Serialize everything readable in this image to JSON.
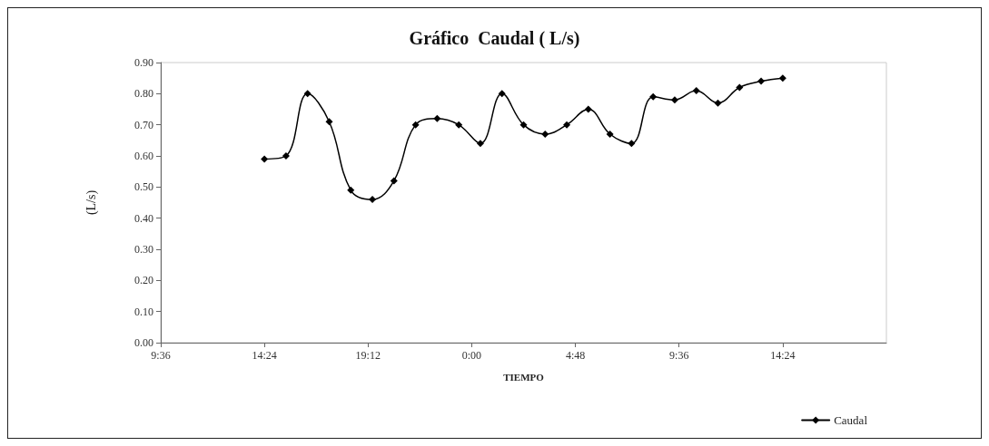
{
  "chart_data": {
    "type": "line",
    "title": "Gráfico  Caudal ( L/s)",
    "xlabel": "TIEMPO",
    "ylabel": "(L/s)",
    "series": [
      {
        "name": "Caudal",
        "color": "#000000",
        "x": [
          "2000-01-01T14:24",
          "2000-01-01T15:24",
          "2000-01-01T16:24",
          "2000-01-01T17:24",
          "2000-01-01T18:24",
          "2000-01-01T19:24",
          "2000-01-01T20:24",
          "2000-01-01T21:24",
          "2000-01-01T22:24",
          "2000-01-01T23:24",
          "2000-01-02T00:24",
          "2000-01-02T01:24",
          "2000-01-02T02:24",
          "2000-01-02T03:24",
          "2000-01-02T04:24",
          "2000-01-02T05:24",
          "2000-01-02T06:24",
          "2000-01-02T07:24",
          "2000-01-02T08:24",
          "2000-01-02T09:24",
          "2000-01-02T10:24",
          "2000-01-02T11:24",
          "2000-01-02T12:24",
          "2000-01-02T13:24",
          "2000-01-02T14:24"
        ],
        "values": [
          0.59,
          0.6,
          0.8,
          0.71,
          0.49,
          0.46,
          0.52,
          0.7,
          0.72,
          0.7,
          0.64,
          0.8,
          0.7,
          0.67,
          0.7,
          0.75,
          0.67,
          0.64,
          0.79,
          0.78,
          0.81,
          0.77,
          0.82,
          0.84,
          0.85
        ]
      }
    ],
    "xlim": [
      "2000-01-01T09:36",
      "2000-01-02T19:12"
    ],
    "xticks": [
      {
        "value": "2000-01-01T09:36",
        "label": "9:36"
      },
      {
        "value": "2000-01-01T14:24",
        "label": "14:24"
      },
      {
        "value": "2000-01-01T19:12",
        "label": "19:12"
      },
      {
        "value": "2000-01-02T00:00",
        "label": "0:00"
      },
      {
        "value": "2000-01-02T04:48",
        "label": "4:48"
      },
      {
        "value": "2000-01-02T09:36",
        "label": "9:36"
      },
      {
        "value": "2000-01-02T14:24",
        "label": "14:24"
      }
    ],
    "ylim": [
      0,
      0.9
    ],
    "yticks": [
      {
        "value": 0,
        "label": "0.00"
      },
      {
        "value": 0.1,
        "label": "0.10"
      },
      {
        "value": 0.2,
        "label": "0.20"
      },
      {
        "value": 0.3,
        "label": "0.30"
      },
      {
        "value": 0.4,
        "label": "0.40"
      },
      {
        "value": 0.5,
        "label": "0.50"
      },
      {
        "value": 0.6,
        "label": "0.60"
      },
      {
        "value": 0.7,
        "label": "0.70"
      },
      {
        "value": 0.8,
        "label": "0.80"
      },
      {
        "value": 0.9,
        "label": "0.90"
      }
    ],
    "grid": false,
    "legend": "bottom right",
    "marker": "diamond",
    "line_style": "solid"
  }
}
